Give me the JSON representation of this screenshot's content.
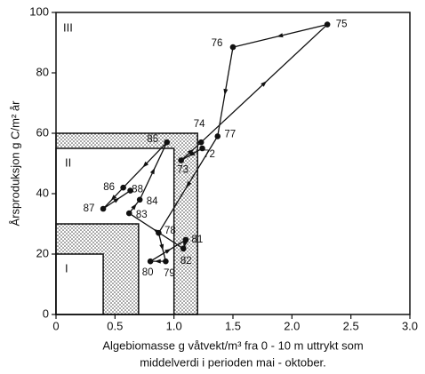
{
  "chart_data": {
    "type": "line",
    "ylabel": "Årsproduksjon g C/m² år",
    "xlabel": [
      "Algebiomasse g våtvekt/m³ fra 0 - 10 m uttrykt som",
      "middelverdi i perioden mai - oktober."
    ],
    "x": [
      1.24,
      1.06,
      1.23,
      2.3,
      1.5,
      1.37,
      0.87,
      0.93,
      0.8,
      1.1,
      1.08,
      0.62,
      0.71,
      0.94,
      0.57,
      0.4,
      0.63
    ],
    "values": [
      55,
      51,
      57,
      96,
      88.5,
      59,
      27,
      17.6,
      17.6,
      24.7,
      21.8,
      33.5,
      38,
      57,
      42,
      35,
      41
    ],
    "point_labels": [
      "72",
      "73",
      "74",
      "75",
      "76",
      "77",
      "78",
      "79",
      "80",
      "81",
      "82",
      "83",
      "84",
      "85",
      "86",
      "87",
      "88"
    ],
    "color": "#111111",
    "regions": [
      {
        "label": "II",
        "outer_xlim": [
          0,
          1.2
        ],
        "outer_ylim": [
          0,
          60
        ],
        "inner_xlim": [
          0,
          1.0
        ],
        "inner_ylim": [
          0,
          55
        ]
      },
      {
        "label": "I",
        "outer_xlim": [
          0,
          0.7
        ],
        "outer_ylim": [
          0,
          30
        ],
        "inner_xlim": [
          0,
          0.4
        ],
        "inner_ylim": [
          0,
          20
        ]
      },
      {
        "label": "III"
      }
    ],
    "xlim": [
      0,
      3.0
    ],
    "ylim": [
      0,
      100
    ],
    "xticks": [
      0,
      0.5,
      {
        "value": 1,
        "label": "1.0"
      },
      1.5,
      {
        "value": 2,
        "label": "2.0"
      },
      2.5,
      {
        "value": 3,
        "label": "3.0"
      }
    ],
    "yticks": [
      0,
      20,
      40,
      60,
      80,
      100
    ],
    "grid": false
  }
}
